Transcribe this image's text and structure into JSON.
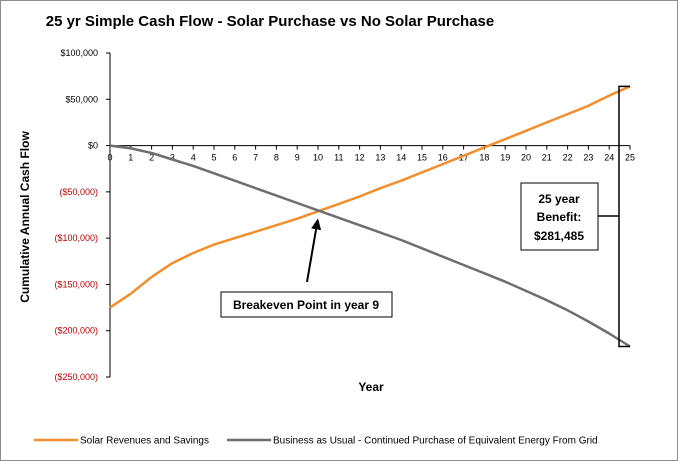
{
  "colors": {
    "solar": "#F28E2B",
    "business": "#6E6E6E",
    "negative_tick": "#C00000",
    "axis": "#000000"
  },
  "chart_data": {
    "type": "line",
    "title": "25 yr Simple Cash Flow - Solar Purchase vs No Solar Purchase",
    "xlabel": "Year",
    "ylabel": "Cumulative Annual Cash Flow",
    "ylim": [
      -250000,
      100000
    ],
    "xlim": [
      0,
      25
    ],
    "x": [
      0,
      1,
      2,
      3,
      4,
      5,
      6,
      7,
      8,
      9,
      10,
      11,
      12,
      13,
      14,
      15,
      16,
      17,
      18,
      19,
      20,
      21,
      22,
      23,
      24,
      25
    ],
    "y_ticks": [
      {
        "value": 100000,
        "label": "$100,000"
      },
      {
        "value": 50000,
        "label": "$50,000"
      },
      {
        "value": 0,
        "label": "$0"
      },
      {
        "value": -50000,
        "label": "($50,000)"
      },
      {
        "value": -100000,
        "label": "($100,000)"
      },
      {
        "value": -150000,
        "label": "($150,000)"
      },
      {
        "value": -200000,
        "label": "($200,000)"
      },
      {
        "value": -250000,
        "label": "($250,000)"
      }
    ],
    "x_tick_labels": [
      "0",
      "1",
      "2",
      "3",
      "4",
      "5",
      "6",
      "7",
      "8",
      "9",
      "10",
      "11",
      "12",
      "13",
      "14",
      "15",
      "16",
      "17",
      "18",
      "19",
      "20",
      "21",
      "22",
      "23",
      "24",
      "25"
    ],
    "series": [
      {
        "name": "Solar Revenues and Savings",
        "color": "#F28E2B",
        "values": [
          -175000,
          -160000,
          -142000,
          -127000,
          -116000,
          -107000,
          -100000,
          -93000,
          -86000,
          -79000,
          -71000,
          -63000,
          -55000,
          -46000,
          -38000,
          -29000,
          -20000,
          -11000,
          -2000,
          7000,
          16000,
          25000,
          34000,
          43000,
          54000,
          64000
        ]
      },
      {
        "name": "Business as Usual - Continued Purchase of Equivalent Energy From Grid",
        "color": "#6E6E6E",
        "values": [
          0,
          -3000,
          -8000,
          -15000,
          -22000,
          -30000,
          -38000,
          -46000,
          -54000,
          -62000,
          -70000,
          -78000,
          -86000,
          -94000,
          -102000,
          -111000,
          -120000,
          -129000,
          -138000,
          -147000,
          -157000,
          -167000,
          -178000,
          -190000,
          -203000,
          -217000
        ]
      }
    ],
    "annotations": {
      "breakeven": {
        "label": "Breakeven Point in year 9",
        "x": 10,
        "y": -70000
      },
      "benefit": {
        "line1": "25 year",
        "line2": "Benefit:",
        "line3": "$281,485",
        "x": 25,
        "y_top": 64000,
        "y_bottom": -217000
      }
    }
  }
}
